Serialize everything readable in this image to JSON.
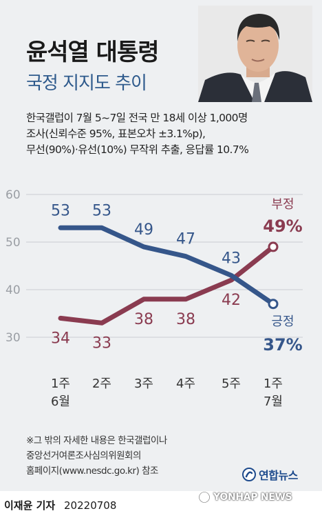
{
  "header": {
    "title": "윤석열 대통령",
    "subtitle": "국정 지지도 추이"
  },
  "survey_note": [
    "한국갤럽이 7월 5~7일 전국 만 18세 이상 1,000명",
    "조사(신뢰수준 95%, 표본오차 ±3.1%p),",
    "무선(90%)·유선(10%) 무작위 추출, 응답률 10.7%"
  ],
  "chart_data": {
    "type": "line",
    "categories": [
      [
        "1주",
        "6월"
      ],
      [
        "2주",
        ""
      ],
      [
        "3주",
        ""
      ],
      [
        "4주",
        ""
      ],
      [
        "5주",
        ""
      ],
      [
        "1주",
        "7월"
      ]
    ],
    "ylim": [
      30,
      60
    ],
    "yticks": [
      "30",
      "40",
      "50",
      "60"
    ],
    "grid": true,
    "series": [
      {
        "name": "긍정",
        "label_value": "37%",
        "color": "#35568a",
        "values": [
          53,
          53,
          49,
          47,
          43,
          37
        ],
        "point_labels": [
          "53",
          "53",
          "49",
          "47",
          "43"
        ]
      },
      {
        "name": "부정",
        "label_value": "49%",
        "color": "#8a3b50",
        "values": [
          34,
          33,
          38,
          38,
          42,
          49
        ],
        "point_labels": [
          "34",
          "33",
          "38",
          "38",
          "42"
        ]
      }
    ]
  },
  "footnote": [
    "※그 밖의 자세한 내용은 한국갤럽이나",
    "중앙선거여론조사심의위원회의",
    "홈페이지(www.nesdc.go.kr) 참조"
  ],
  "logo": {
    "text": "연합뉴스",
    "icon": "yonhap-logo-icon"
  },
  "byline": {
    "name": "이재윤 기자",
    "date": "20220708"
  },
  "watermark": {
    "text": "YONHAP NEWS",
    "icon": "yonhap-watermark-icon"
  }
}
